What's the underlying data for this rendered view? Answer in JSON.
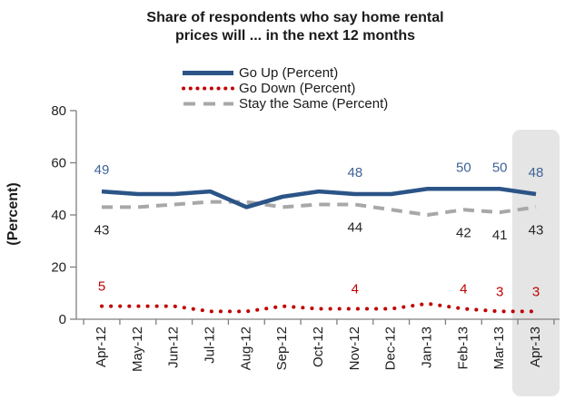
{
  "chart_data": {
    "type": "line",
    "title": [
      "Share of respondents who say home rental",
      "prices will ... in  the next 12 months"
    ],
    "ylabel": "(Percent)",
    "ylim": [
      0,
      80
    ],
    "yticks": [
      0,
      20,
      40,
      60,
      80
    ],
    "grid": false,
    "legend_position": "top-center",
    "categories": [
      "Apr-12",
      "May-12",
      "Jun-12",
      "Jul-12",
      "Aug-12",
      "Sep-12",
      "Oct-12",
      "Nov-12",
      "Dec-12",
      "Jan-13",
      "Feb-13",
      "Mar-13",
      "Apr-13"
    ],
    "series": [
      {
        "name": "Go Up (Percent)",
        "style": "solid",
        "color": "#2B5487",
        "label_color": "#3E6398",
        "values": [
          49,
          48,
          48,
          49,
          43,
          47,
          49,
          48,
          48,
          50,
          50,
          50,
          48
        ],
        "labeled_indices": [
          0,
          7,
          10,
          11,
          12
        ]
      },
      {
        "name": "Go Down (Percent)",
        "style": "dotted",
        "color": "#C00000",
        "label_color": "#C00000",
        "values": [
          5,
          5,
          5,
          3,
          3,
          5,
          4,
          4,
          4,
          6,
          4,
          3,
          3
        ],
        "labeled_indices": [
          0,
          7,
          10,
          11,
          12
        ]
      },
      {
        "name": "Stay the Same (Percent)",
        "style": "dashed",
        "color": "#A8A8A8",
        "label_color": "#262626",
        "values": [
          43,
          43,
          44,
          45,
          45,
          43,
          44,
          44,
          42,
          40,
          42,
          41,
          43
        ],
        "labeled_indices": [
          0,
          7,
          10,
          11,
          12
        ]
      }
    ],
    "highlight_band": {
      "category": "Apr-13",
      "color": "#E5E5E5"
    },
    "axis_color": "#7F7F7F",
    "text_color": "#1F1F1F"
  }
}
